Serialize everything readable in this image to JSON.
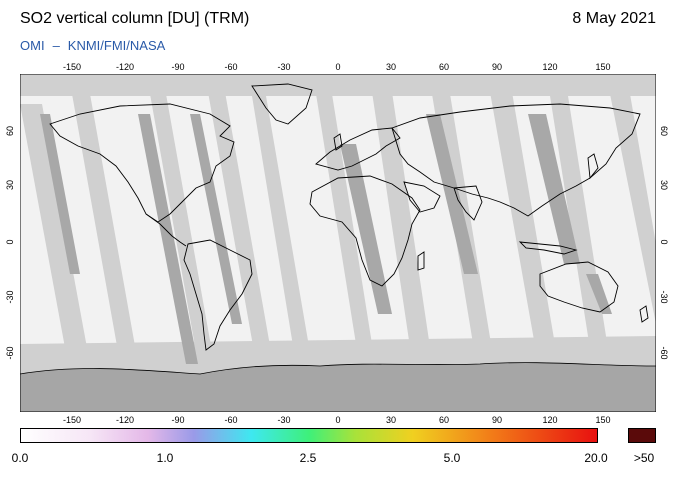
{
  "header": {
    "title": "SO2 vertical column [DU] (TRM)",
    "date": "8 May 2021",
    "credit_left": "OMI",
    "credit_sep": "–",
    "credit_right": "KNMI/FMI/NASA"
  },
  "map": {
    "lon_ticks": [
      "-150",
      "-120",
      "-90",
      "-60",
      "-30",
      "0",
      "30",
      "60",
      "90",
      "120",
      "150"
    ],
    "lat_ticks_left": [
      "60",
      "30",
      "0",
      "-30",
      "-60"
    ],
    "lat_ticks_right": [
      "60",
      "30",
      "0",
      "-30",
      "-60"
    ],
    "colors": {
      "ocean_light": "#f2f2f2",
      "swath_light": "#d0d0d0",
      "swath_dark": "#a8a8a8",
      "coast": "#000000",
      "antarctica": "#a6a6a6"
    }
  },
  "colorbar": {
    "labels": [
      "0.0",
      "1.0",
      "2.5",
      "5.0",
      "20.0"
    ],
    "overflow_label": ">50",
    "overflow_color": "#5a0a0a"
  }
}
